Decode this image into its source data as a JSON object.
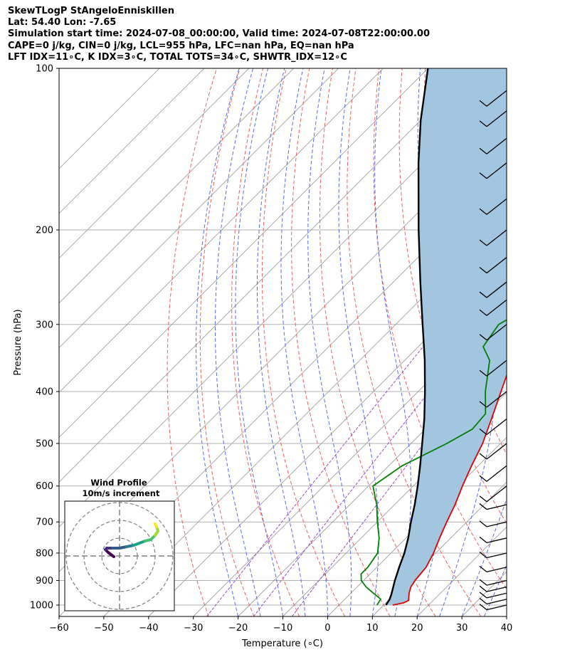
{
  "header": {
    "line1": "SkewTLogP StAngeloEnniskillen",
    "line2": "Lat: 54.40   Lon: -7.65",
    "line3": "Simulation start time: 2024-07-08_00:00:00, Valid time: 2024-07-08T22:00:00.00",
    "line4": "CAPE=0 j/kg, CIN=0 j/kg, LCL=955 hPa, LFC=nan hPa, EQ=nan hPa",
    "line5": "LFT IDX=11∘C, K IDX=3∘C, TOTAL TOTS=34∘C, SHWTR_IDX=12∘C"
  },
  "chart_data": {
    "type": "line",
    "subtype": "skew-t log-p",
    "xlabel": "Temperature (∘C)",
    "ylabel": "Pressure (hPa)",
    "xlim": [
      -60,
      40
    ],
    "ylim_hPa": [
      1050,
      100
    ],
    "y_scale": "log",
    "x_ticks": [
      "−60",
      "−50",
      "−40",
      "−30",
      "−20",
      "−10",
      "0",
      "10",
      "20",
      "30",
      "40"
    ],
    "y_ticks": [
      1000,
      900,
      800,
      700,
      600,
      500,
      400,
      300,
      200,
      100
    ],
    "grid": true,
    "series": [
      {
        "name": "",
        "role": "temperature",
        "color": "#e00000",
        "points": [
          [
            1000,
            12
          ],
          [
            990,
            14
          ],
          [
            980,
            14.5
          ],
          [
            950,
            13
          ],
          [
            925,
            12
          ],
          [
            900,
            11.5
          ],
          [
            850,
            11
          ],
          [
            800,
            9.5
          ],
          [
            750,
            7.5
          ],
          [
            700,
            5.5
          ],
          [
            650,
            3.5
          ],
          [
            600,
            1
          ],
          [
            550,
            -1.5
          ],
          [
            500,
            -4
          ],
          [
            450,
            -7.5
          ],
          [
            400,
            -11.5
          ],
          [
            350,
            -16
          ],
          [
            300,
            -22
          ],
          [
            275,
            -25.5
          ],
          [
            250,
            -30
          ],
          [
            240,
            -32
          ],
          [
            225,
            -33
          ],
          [
            215,
            -31
          ],
          [
            200,
            -30
          ],
          [
            185,
            -30
          ],
          [
            175,
            -32
          ],
          [
            165,
            -38
          ],
          [
            150,
            -43
          ],
          [
            140,
            -46
          ],
          [
            125,
            -51
          ],
          [
            110,
            -56
          ],
          [
            100,
            -60
          ]
        ]
      },
      {
        "name": "",
        "role": "dewpoint",
        "color": "#008000",
        "points": [
          [
            1000,
            8.5
          ],
          [
            975,
            8
          ],
          [
            950,
            5
          ],
          [
            925,
            2
          ],
          [
            900,
            -0.5
          ],
          [
            875,
            -2
          ],
          [
            850,
            -2
          ],
          [
            800,
            -3
          ],
          [
            750,
            -6
          ],
          [
            700,
            -10
          ],
          [
            650,
            -14
          ],
          [
            600,
            -19
          ],
          [
            550,
            -17
          ],
          [
            500,
            -12
          ],
          [
            470,
            -9.5
          ],
          [
            440,
            -10
          ],
          [
            400,
            -15
          ],
          [
            350,
            -21
          ],
          [
            330,
            -25.5
          ],
          [
            300,
            -27
          ],
          [
            285,
            -25
          ],
          [
            265,
            -29
          ],
          [
            240,
            -33
          ],
          [
            220,
            -35.5
          ],
          [
            200,
            -38
          ],
          [
            180,
            -45
          ],
          [
            160,
            -49
          ],
          [
            140,
            -56
          ],
          [
            120,
            -63
          ],
          [
            100,
            -69
          ]
        ]
      },
      {
        "name": "",
        "role": "parcel profile",
        "color": "#000000",
        "points": [
          [
            1000,
            10.5
          ],
          [
            975,
            10
          ],
          [
            955,
            9.3
          ],
          [
            900,
            7
          ],
          [
            850,
            5
          ],
          [
            800,
            3
          ],
          [
            750,
            0.5
          ],
          [
            700,
            -2.5
          ],
          [
            650,
            -5.5
          ],
          [
            600,
            -9
          ],
          [
            550,
            -13
          ],
          [
            500,
            -17.5
          ],
          [
            450,
            -22.5
          ],
          [
            400,
            -28.5
          ],
          [
            350,
            -35.5
          ],
          [
            300,
            -44
          ],
          [
            250,
            -54
          ],
          [
            200,
            -66
          ],
          [
            150,
            -81
          ],
          [
            125,
            -90
          ],
          [
            100,
            -100
          ]
        ]
      }
    ],
    "shading": "area between temperature and parcel profile",
    "shading_color": "#a3c6e0",
    "reference_lines": {
      "isotherms": "grey, skewed",
      "dry_adiabats": "dashed red",
      "moist_adiabats": "dashed blue",
      "mixing_ratio": "dashed purple"
    },
    "wind_barbs": [
      {
        "p": 1000,
        "note": "barb"
      },
      {
        "p": 975,
        "note": "barb"
      },
      {
        "p": 950,
        "note": "barb"
      },
      {
        "p": 925,
        "note": "barb"
      },
      {
        "p": 900,
        "note": "barb"
      },
      {
        "p": 850,
        "note": "barb"
      },
      {
        "p": 800,
        "note": "barb"
      },
      {
        "p": 750,
        "note": "barb"
      },
      {
        "p": 700,
        "note": "barb"
      },
      {
        "p": 650,
        "note": "barb"
      },
      {
        "p": 600,
        "note": "barb"
      },
      {
        "p": 550,
        "note": "barb"
      },
      {
        "p": 500,
        "note": "barb"
      },
      {
        "p": 450,
        "note": "barb"
      },
      {
        "p": 400,
        "note": "barb"
      },
      {
        "p": 350,
        "note": "barb"
      },
      {
        "p": 300,
        "note": "barb"
      },
      {
        "p": 270,
        "note": "barb"
      },
      {
        "p": 250,
        "note": "barb"
      },
      {
        "p": 225,
        "note": "barb"
      },
      {
        "p": 200,
        "note": "barb"
      },
      {
        "p": 175,
        "note": "barb"
      },
      {
        "p": 150,
        "note": "barb"
      },
      {
        "p": 135,
        "note": "barb"
      },
      {
        "p": 120,
        "note": "barb"
      },
      {
        "p": 110,
        "note": "barb"
      }
    ],
    "inset": {
      "title_line1": "Wind Profile",
      "title_line2": "10m/s increment",
      "type": "hodograph",
      "rings": 3,
      "colormap": "viridis"
    }
  }
}
